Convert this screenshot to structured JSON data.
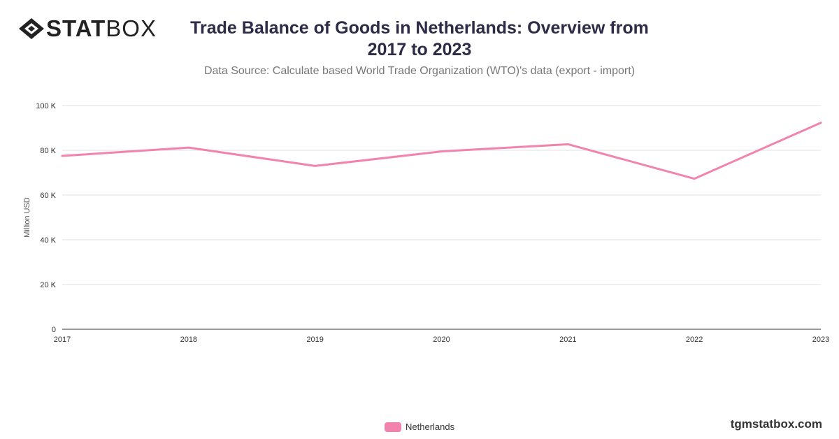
{
  "brand": {
    "logo_bold": "STAT",
    "logo_light": "BOX",
    "site": "tgmstatbox.com"
  },
  "title": "Trade Balance of Goods in Netherlands: Overview from 2017 to 2023",
  "subtitle": "Data Source: Calculate based World Trade Organization (WTO)'s data (export - import)",
  "colors": {
    "series": "#f283ad",
    "grid": "#e0e0e0",
    "axis": "#333333"
  },
  "chart_data": {
    "type": "line",
    "title": "Trade Balance of Goods in Netherlands: Overview from 2017 to 2023",
    "ylabel": "Million USD",
    "xlabel": "",
    "x": [
      "2017",
      "2018",
      "2019",
      "2020",
      "2021",
      "2022",
      "2023"
    ],
    "ylim": [
      0,
      100000
    ],
    "yticks": [
      0,
      20000,
      40000,
      60000,
      80000,
      100000
    ],
    "ytick_labels": [
      "0",
      "20 K",
      "40 K",
      "60 K",
      "80 K",
      "100 K"
    ],
    "grid": true,
    "legend_position": "bottom-center",
    "series": [
      {
        "name": "Netherlands",
        "values": [
          77500,
          81200,
          73000,
          79500,
          82700,
          67300,
          92300
        ]
      }
    ]
  }
}
